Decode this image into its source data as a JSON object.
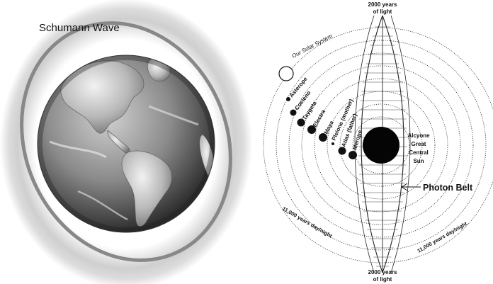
{
  "left": {
    "wave_label": "Schumann Wave",
    "globe_icon": "earth-globe-icon"
  },
  "right": {
    "top_label": [
      "2000 years",
      "of light"
    ],
    "bottom_label": [
      "2000 years",
      "of light"
    ],
    "solar_system_label": "Our Solar System",
    "sun_label": [
      "Alcyone",
      "Great",
      "Central",
      "Sun"
    ],
    "photon_belt_label": "Photon Belt",
    "day_night_left": "11,000 years day/night",
    "day_night_right": "11,000 years day/night",
    "stars": [
      "Asterope",
      "Coeleno",
      "Taygeta",
      "Electra",
      "Maya",
      "Pleione (mother)",
      "Atlas (father)",
      "Merope"
    ]
  }
}
